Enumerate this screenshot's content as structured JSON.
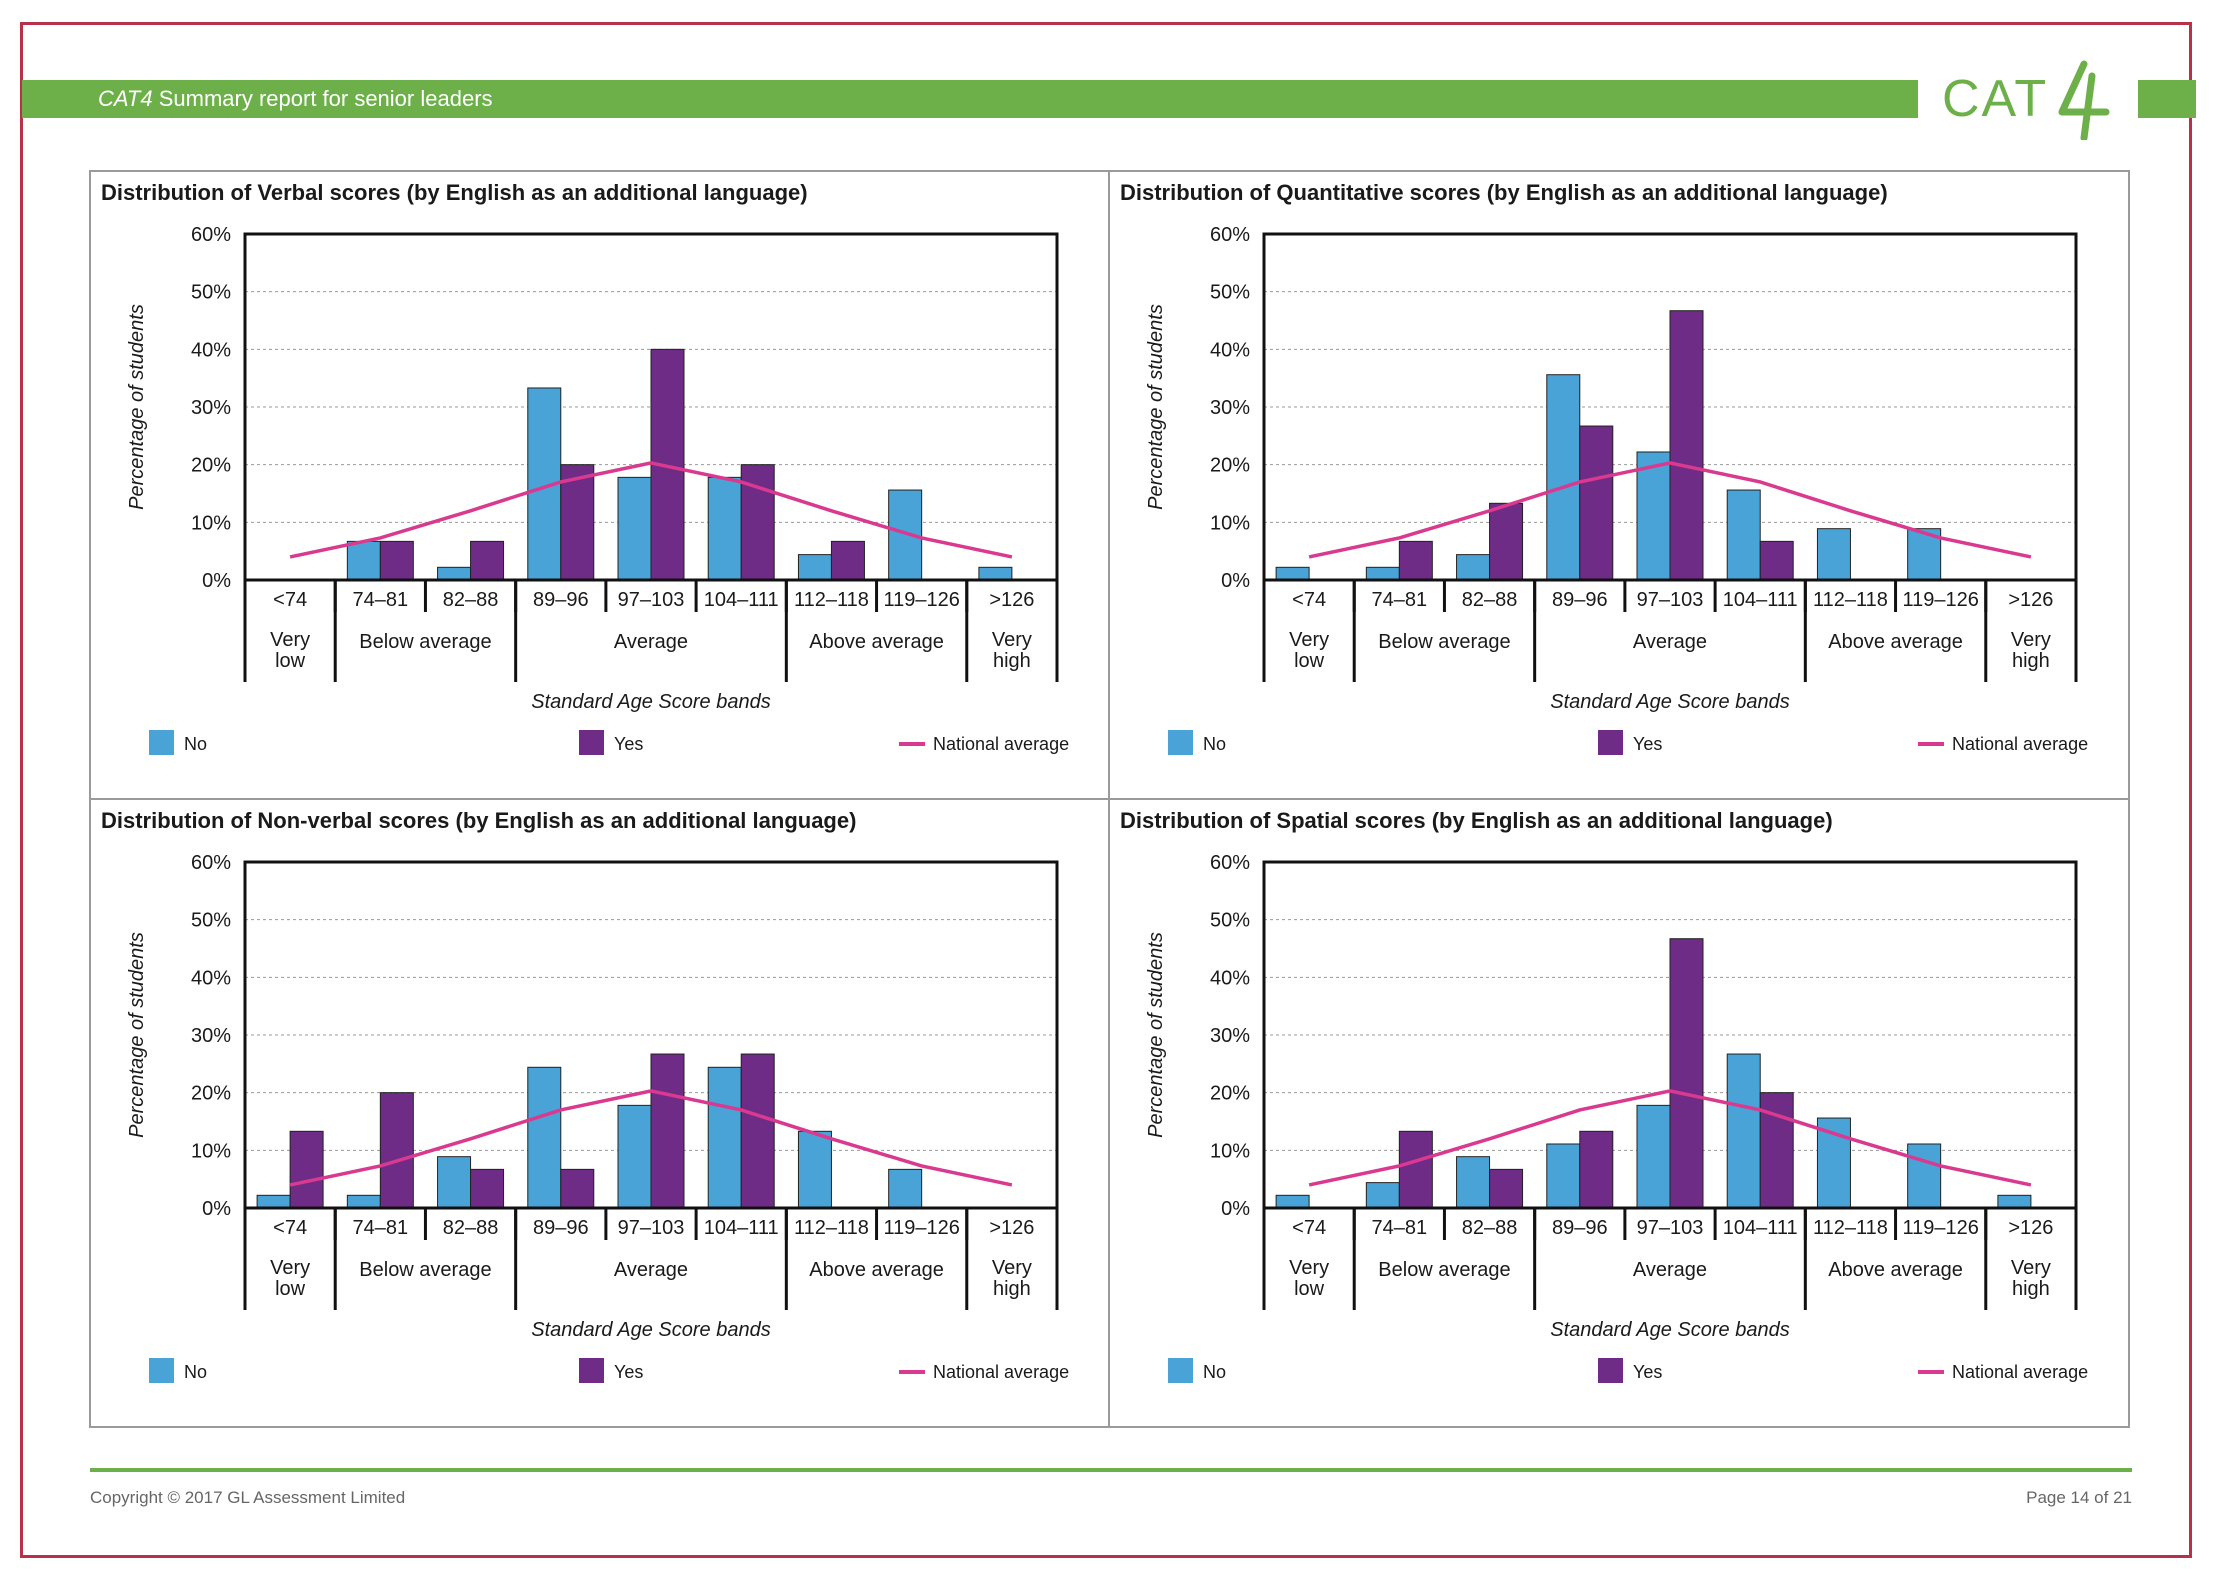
{
  "header": {
    "title_italic": "CAT4",
    "title_rest": " Summary report for senior leaders",
    "logo_text": "CAT4"
  },
  "footer": {
    "copyright": "Copyright © 2017 GL Assessment Limited",
    "page": "Page 14 of 21"
  },
  "colors": {
    "no": "#4aa3d6",
    "yes": "#6e2c86",
    "national": "#d9398e",
    "brand_green": "#6db04a",
    "frame": "#b8314a"
  },
  "chart_data": [
    {
      "type": "bar",
      "title": "Distribution of Verbal scores (by English as an additional language)",
      "ylabel": "Percentage of students",
      "xlabel": "Standard Age Score bands",
      "ylim": [
        0,
        60
      ],
      "yticks": [
        "0%",
        "10%",
        "20%",
        "30%",
        "40%",
        "50%",
        "60%"
      ],
      "categories": [
        "<74",
        "74–81",
        "82–88",
        "89–96",
        "97–103",
        "104–111",
        "112–118",
        "119–126",
        ">126"
      ],
      "groups": [
        {
          "label": "Very low",
          "span": 1
        },
        {
          "label": "Below average",
          "span": 2
        },
        {
          "label": "Average",
          "span": 3
        },
        {
          "label": "Above average",
          "span": 2
        },
        {
          "label": "Very high",
          "span": 1
        }
      ],
      "series": [
        {
          "name": "No",
          "values": [
            0,
            6.7,
            2.2,
            33.3,
            17.8,
            17.8,
            4.4,
            15.6,
            2.2
          ]
        },
        {
          "name": "Yes",
          "values": [
            0,
            6.7,
            6.7,
            20,
            40,
            20,
            6.7,
            0,
            0
          ]
        },
        {
          "name": "National average",
          "values": [
            4,
            7.3,
            12,
            17,
            20.3,
            17,
            12,
            7.3,
            4
          ]
        }
      ],
      "legend": [
        "No",
        "Yes",
        "National average"
      ]
    },
    {
      "type": "bar",
      "title": "Distribution of Quantitative scores (by English as an additional language)",
      "ylabel": "Percentage of students",
      "xlabel": "Standard Age Score bands",
      "ylim": [
        0,
        60
      ],
      "yticks": [
        "0%",
        "10%",
        "20%",
        "30%",
        "40%",
        "50%",
        "60%"
      ],
      "categories": [
        "<74",
        "74–81",
        "82–88",
        "89–96",
        "97–103",
        "104–111",
        "112–118",
        "119–126",
        ">126"
      ],
      "groups": [
        {
          "label": "Very low",
          "span": 1
        },
        {
          "label": "Below average",
          "span": 2
        },
        {
          "label": "Average",
          "span": 3
        },
        {
          "label": "Above average",
          "span": 2
        },
        {
          "label": "Very high",
          "span": 1
        }
      ],
      "series": [
        {
          "name": "No",
          "values": [
            2.2,
            2.2,
            4.4,
            35.6,
            22.2,
            15.6,
            8.9,
            8.9,
            0
          ]
        },
        {
          "name": "Yes",
          "values": [
            0,
            6.7,
            13.3,
            26.7,
            46.7,
            6.7,
            0,
            0,
            0
          ]
        },
        {
          "name": "National average",
          "values": [
            4,
            7.3,
            12,
            17,
            20.3,
            17,
            12,
            7.3,
            4
          ]
        }
      ],
      "legend": [
        "No",
        "Yes",
        "National average"
      ]
    },
    {
      "type": "bar",
      "title": "Distribution of Non-verbal scores (by English as an additional language)",
      "ylabel": "Percentage of students",
      "xlabel": "Standard Age Score bands",
      "ylim": [
        0,
        60
      ],
      "yticks": [
        "0%",
        "10%",
        "20%",
        "30%",
        "40%",
        "50%",
        "60%"
      ],
      "categories": [
        "<74",
        "74–81",
        "82–88",
        "89–96",
        "97–103",
        "104–111",
        "112–118",
        "119–126",
        ">126"
      ],
      "groups": [
        {
          "label": "Very low",
          "span": 1
        },
        {
          "label": "Below average",
          "span": 2
        },
        {
          "label": "Average",
          "span": 3
        },
        {
          "label": "Above average",
          "span": 2
        },
        {
          "label": "Very high",
          "span": 1
        }
      ],
      "series": [
        {
          "name": "No",
          "values": [
            2.2,
            2.2,
            8.9,
            24.4,
            17.8,
            24.4,
            13.3,
            6.7,
            0
          ]
        },
        {
          "name": "Yes",
          "values": [
            13.3,
            20,
            6.7,
            6.7,
            26.7,
            26.7,
            0,
            0,
            0
          ]
        },
        {
          "name": "National average",
          "values": [
            4,
            7.3,
            12,
            17,
            20.3,
            17,
            12,
            7.3,
            4
          ]
        }
      ],
      "legend": [
        "No",
        "Yes",
        "National average"
      ]
    },
    {
      "type": "bar",
      "title": "Distribution of Spatial scores (by English as an additional language)",
      "ylabel": "Percentage of students",
      "xlabel": "Standard Age Score bands",
      "ylim": [
        0,
        60
      ],
      "yticks": [
        "0%",
        "10%",
        "20%",
        "30%",
        "40%",
        "50%",
        "60%"
      ],
      "categories": [
        "<74",
        "74–81",
        "82–88",
        "89–96",
        "97–103",
        "104–111",
        "112–118",
        "119–126",
        ">126"
      ],
      "groups": [
        {
          "label": "Very low",
          "span": 1
        },
        {
          "label": "Below average",
          "span": 2
        },
        {
          "label": "Average",
          "span": 3
        },
        {
          "label": "Above average",
          "span": 2
        },
        {
          "label": "Very high",
          "span": 1
        }
      ],
      "series": [
        {
          "name": "No",
          "values": [
            2.2,
            4.4,
            8.9,
            11.1,
            17.8,
            26.7,
            15.6,
            11.1,
            2.2
          ]
        },
        {
          "name": "Yes",
          "values": [
            0,
            13.3,
            6.7,
            13.3,
            46.7,
            20,
            0,
            0,
            0
          ]
        },
        {
          "name": "National average",
          "values": [
            4,
            7.3,
            12,
            17,
            20.3,
            17,
            12,
            7.3,
            4
          ]
        }
      ],
      "legend": [
        "No",
        "Yes",
        "National average"
      ]
    }
  ]
}
